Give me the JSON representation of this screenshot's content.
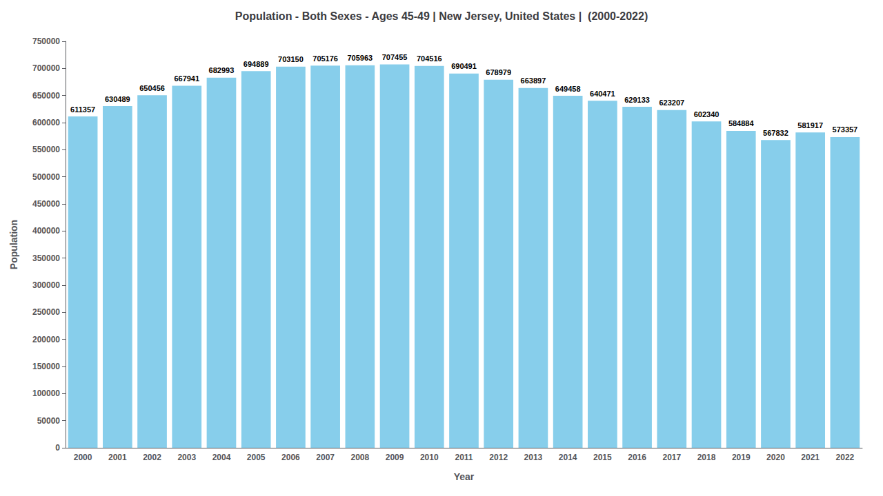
{
  "chart_data": {
    "type": "bar",
    "title": "Population - Both Sexes - Ages 45-49 | New Jersey, United States |  (2000-2022)",
    "xlabel": "Year",
    "ylabel": "Population",
    "categories": [
      "2000",
      "2001",
      "2002",
      "2003",
      "2004",
      "2005",
      "2006",
      "2007",
      "2008",
      "2009",
      "2010",
      "2011",
      "2012",
      "2013",
      "2014",
      "2015",
      "2016",
      "2017",
      "2018",
      "2019",
      "2020",
      "2021",
      "2022"
    ],
    "values": [
      611357,
      630489,
      650456,
      667941,
      682993,
      694889,
      703150,
      705176,
      705963,
      707455,
      704516,
      690491,
      678979,
      663897,
      649458,
      640471,
      629133,
      623207,
      602340,
      584884,
      567832,
      581917,
      573357
    ],
    "color": "#87ceeb",
    "ylim": [
      0,
      750000
    ],
    "yticks": [
      0,
      50000,
      100000,
      150000,
      200000,
      250000,
      300000,
      350000,
      400000,
      450000,
      500000,
      550000,
      600000,
      650000,
      700000,
      750000
    ],
    "grid": false,
    "data_labels": true
  }
}
